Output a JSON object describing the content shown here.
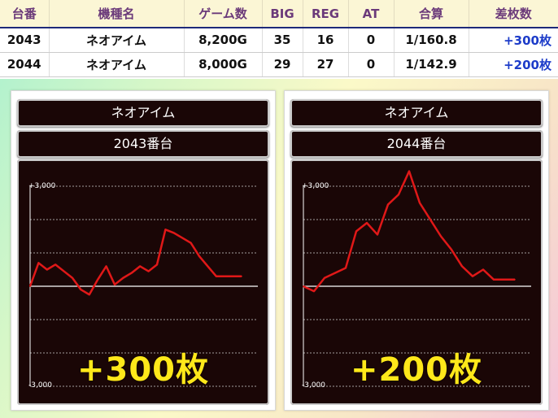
{
  "table": {
    "headers": [
      "台番",
      "機種名",
      "ゲーム数",
      "BIG",
      "REG",
      "AT",
      "合算",
      "差枚数"
    ],
    "rows": [
      [
        "2043",
        "ネオアイム",
        "8,200G",
        "35",
        "16",
        "0",
        "1/160.8",
        "+300枚"
      ],
      [
        "2044",
        "ネオアイム",
        "8,000G",
        "29",
        "27",
        "0",
        "1/142.9",
        "+200枚"
      ]
    ]
  },
  "panels": [
    {
      "model": "ネオアイム",
      "unit": "2043番台",
      "result": "+300枚",
      "y_top_label": "+3,000",
      "y_bottom_label": "-3,000"
    },
    {
      "model": "ネオアイム",
      "unit": "2044番台",
      "result": "+200枚",
      "y_top_label": "+3,000",
      "y_bottom_label": "-3,000"
    }
  ],
  "colors": {
    "line": "#e01818",
    "result": "#ffe81a",
    "diff_text": "#1d3cc9",
    "header_text": "#6b3a7a"
  },
  "chart_data": [
    {
      "type": "line",
      "title": "2043番台",
      "ylim": [
        -3000,
        3000
      ],
      "grid": true,
      "x": [
        0,
        1,
        2,
        3,
        4,
        5,
        6,
        7,
        8,
        9,
        10,
        11,
        12,
        13,
        14,
        15,
        16,
        17,
        18,
        19,
        20,
        21,
        22,
        23,
        24,
        25
      ],
      "values": [
        0,
        700,
        500,
        650,
        450,
        250,
        -100,
        -250,
        200,
        600,
        50,
        250,
        400,
        600,
        450,
        650,
        1700,
        1600,
        1450,
        1300,
        900,
        600,
        300,
        300,
        300,
        300
      ],
      "final": 300
    },
    {
      "type": "line",
      "title": "2044番台",
      "ylim": [
        -3000,
        3000
      ],
      "grid": true,
      "x": [
        0,
        1,
        2,
        3,
        4,
        5,
        6,
        7,
        8,
        9,
        10,
        11,
        12,
        13,
        14,
        15,
        16,
        17,
        18,
        19,
        20
      ],
      "values": [
        0,
        -150,
        250,
        400,
        550,
        1650,
        1900,
        1550,
        2450,
        2750,
        3450,
        2500,
        2000,
        1500,
        1100,
        600,
        300,
        500,
        200,
        200,
        200
      ],
      "final": 200
    }
  ]
}
